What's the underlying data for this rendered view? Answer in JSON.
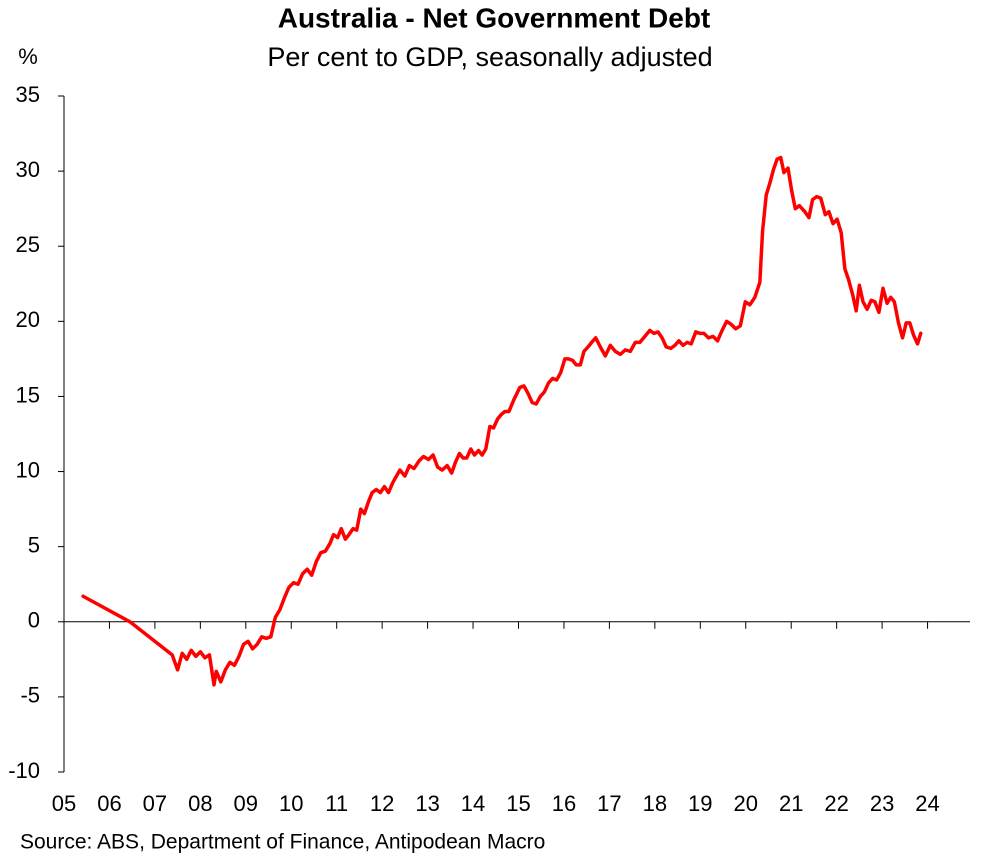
{
  "chart_data": {
    "type": "line",
    "title": "Australia - Net Government Debt",
    "subtitle": "Per cent to GDP, seasonally adjusted",
    "y_label": "%",
    "source": "Source: ABS, Department of Finance, Antipodean Macro",
    "color": "#ff0000",
    "xlim": [
      2005,
      2025
    ],
    "ylim": [
      -10,
      35
    ],
    "yticks": [
      35,
      30,
      25,
      20,
      15,
      10,
      5,
      0,
      -5,
      -10
    ],
    "xticks": [
      {
        "value": 2005,
        "label": "05"
      },
      {
        "value": 2006,
        "label": "06"
      },
      {
        "value": 2007,
        "label": "07"
      },
      {
        "value": 2008,
        "label": "08"
      },
      {
        "value": 2009,
        "label": "09"
      },
      {
        "value": 2010,
        "label": "10"
      },
      {
        "value": 2011,
        "label": "11"
      },
      {
        "value": 2012,
        "label": "12"
      },
      {
        "value": 2013,
        "label": "13"
      },
      {
        "value": 2014,
        "label": "14"
      },
      {
        "value": 2015,
        "label": "15"
      },
      {
        "value": 2016,
        "label": "16"
      },
      {
        "value": 2017,
        "label": "17"
      },
      {
        "value": 2018,
        "label": "18"
      },
      {
        "value": 2019,
        "label": "19"
      },
      {
        "value": 2020,
        "label": "20"
      },
      {
        "value": 2021,
        "label": "21"
      },
      {
        "value": 2022,
        "label": "22"
      },
      {
        "value": 2023,
        "label": "23"
      },
      {
        "value": 2024,
        "label": "24"
      }
    ],
    "x": [
      2005.42,
      2006.45,
      2007.38,
      2007.5,
      2007.6,
      2007.7,
      2007.8,
      2007.9,
      2008.0,
      2008.1,
      2008.2,
      2008.3,
      2008.35,
      2008.45,
      2008.55,
      2008.65,
      2008.75,
      2008.85,
      2008.95,
      2009.05,
      2009.15,
      2009.25,
      2009.35,
      2009.45,
      2009.55,
      2009.65,
      2009.75,
      2009.85,
      2009.95,
      2010.05,
      2010.15,
      2010.25,
      2010.35,
      2010.45,
      2010.55,
      2010.65,
      2010.75,
      2010.85,
      2010.93,
      2011.02,
      2011.1,
      2011.19,
      2011.27,
      2011.36,
      2011.44,
      2011.53,
      2011.61,
      2011.7,
      2011.78,
      2011.87,
      2011.96,
      2012.05,
      2012.14,
      2012.24,
      2012.39,
      2012.5,
      2012.6,
      2012.7,
      2012.81,
      2012.91,
      2013.02,
      2013.12,
      2013.22,
      2013.32,
      2013.43,
      2013.53,
      2013.61,
      2013.7,
      2013.78,
      2013.86,
      2013.95,
      2014.03,
      2014.12,
      2014.2,
      2014.28,
      2014.37,
      2014.45,
      2014.54,
      2014.62,
      2014.7,
      2014.79,
      2014.9,
      2015.03,
      2015.12,
      2015.21,
      2015.3,
      2015.39,
      2015.48,
      2015.57,
      2015.66,
      2015.75,
      2015.84,
      2015.93,
      2016.02,
      2016.1,
      2016.19,
      2016.27,
      2016.36,
      2016.44,
      2016.53,
      2016.61,
      2016.7,
      2016.8,
      2016.91,
      2017.02,
      2017.13,
      2017.24,
      2017.35,
      2017.46,
      2017.57,
      2017.67,
      2017.78,
      2017.89,
      2017.98,
      2018.07,
      2018.16,
      2018.25,
      2018.35,
      2018.44,
      2018.53,
      2018.62,
      2018.71,
      2018.8,
      2018.9,
      2018.99,
      2019.08,
      2019.18,
      2019.28,
      2019.38,
      2019.48,
      2019.58,
      2019.68,
      2019.78,
      2019.88,
      2019.99,
      2020.09,
      2020.2,
      2020.31,
      2020.37,
      2020.45,
      2020.53,
      2020.61,
      2020.69,
      2020.77,
      2020.84,
      2020.93,
      2021.01,
      2021.09,
      2021.18,
      2021.3,
      2021.39,
      2021.47,
      2021.56,
      2021.65,
      2021.75,
      2021.83,
      2021.92,
      2022.01,
      2022.1,
      2022.18,
      2022.26,
      2022.35,
      2022.43,
      2022.5,
      2022.58,
      2022.67,
      2022.76,
      2022.84,
      2022.93,
      2023.02,
      2023.11,
      2023.19,
      2023.27,
      2023.36,
      2023.45,
      2023.53,
      2023.61,
      2023.69,
      2023.78,
      2023.85
    ],
    "values": [
      1.7,
      0,
      -2.2,
      -3.2,
      -2.1,
      -2.5,
      -1.9,
      -2.3,
      -2.0,
      -2.4,
      -2.2,
      -4.2,
      -3.3,
      -4.0,
      -3.2,
      -2.7,
      -2.9,
      -2.3,
      -1.5,
      -1.3,
      -1.8,
      -1.5,
      -1.0,
      -1.1,
      -1.0,
      0.3,
      0.8,
      1.6,
      2.3,
      2.6,
      2.5,
      3.2,
      3.5,
      3.1,
      4.0,
      4.6,
      4.7,
      5.2,
      5.8,
      5.6,
      6.2,
      5.5,
      5.8,
      6.2,
      6.1,
      7.5,
      7.2,
      8.0,
      8.6,
      8.8,
      8.6,
      9.0,
      8.6,
      9.3,
      10.1,
      9.7,
      10.4,
      10.2,
      10.7,
      11.0,
      10.8,
      11.1,
      10.3,
      10.1,
      10.4,
      9.9,
      10.6,
      11.2,
      10.9,
      10.9,
      11.5,
      11.1,
      11.4,
      11.1,
      11.5,
      13.0,
      12.9,
      13.5,
      13.8,
      14.0,
      14.0,
      14.8,
      15.6,
      15.7,
      15.2,
      14.6,
      14.5,
      15.0,
      15.3,
      15.9,
      16.2,
      16.1,
      16.6,
      17.5,
      17.5,
      17.4,
      17.1,
      17.1,
      18.0,
      18.3,
      18.6,
      18.9,
      18.3,
      17.7,
      18.4,
      18.0,
      17.8,
      18.1,
      18.0,
      18.6,
      18.6,
      19.0,
      19.4,
      19.2,
      19.3,
      18.9,
      18.3,
      18.2,
      18.4,
      18.7,
      18.4,
      18.6,
      18.5,
      19.3,
      19.2,
      19.2,
      18.9,
      19.0,
      18.7,
      19.4,
      20.0,
      19.8,
      19.5,
      19.7,
      21.3,
      21.1,
      21.6,
      22.6,
      26.0,
      28.4,
      29.2,
      30.1,
      30.8,
      30.9,
      29.9,
      30.2,
      28.7,
      27.5,
      27.7,
      27.3,
      26.9,
      28.1,
      28.3,
      28.2,
      27.1,
      27.3,
      26.5,
      26.8,
      25.9,
      23.5,
      22.8,
      21.8,
      20.7,
      22.4,
      21.3,
      20.8,
      21.4,
      21.3,
      20.6,
      22.2,
      21.2,
      21.6,
      21.3,
      19.9,
      18.9,
      19.9,
      19.9,
      19.1,
      18.5,
      19.2
    ]
  }
}
